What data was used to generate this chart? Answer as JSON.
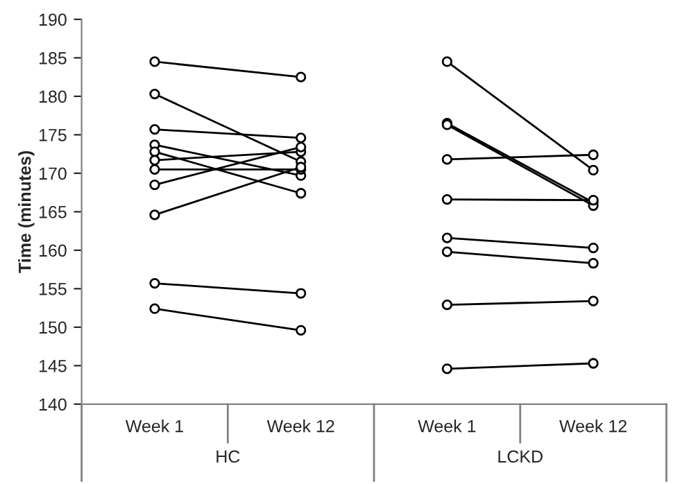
{
  "chart_data": {
    "type": "line",
    "ylabel": "Time (minutes)",
    "categories": [
      "Week 1",
      "Week 12",
      "Week 1",
      "Week 12"
    ],
    "annotations": [
      "HC",
      "LCKD"
    ],
    "ylim": [
      140,
      190
    ],
    "yticks": [
      140,
      145,
      150,
      155,
      160,
      165,
      170,
      175,
      180,
      185,
      190
    ],
    "grid": false,
    "legend": false,
    "marker": "circle",
    "line_style": "solid",
    "series": [
      {
        "color": "#000000",
        "values": [
          184.5,
          182.5,
          null,
          null
        ]
      },
      {
        "color": "#000000",
        "values": [
          180.3,
          171.5,
          null,
          null
        ]
      },
      {
        "color": "#000000",
        "values": [
          175.7,
          174.6,
          null,
          null
        ]
      },
      {
        "color": "#000000",
        "values": [
          173.7,
          169.7,
          null,
          null
        ]
      },
      {
        "color": "#000000",
        "values": [
          172.8,
          167.4,
          null,
          null
        ]
      },
      {
        "color": "#000000",
        "values": [
          171.7,
          172.8,
          null,
          null
        ]
      },
      {
        "color": "#000000",
        "values": [
          170.5,
          170.5,
          null,
          null
        ]
      },
      {
        "color": "#000000",
        "values": [
          168.5,
          173.4,
          null,
          null
        ]
      },
      {
        "color": "#000000",
        "values": [
          164.6,
          170.8,
          null,
          null
        ]
      },
      {
        "color": "#000000",
        "values": [
          155.7,
          154.4,
          null,
          null
        ]
      },
      {
        "color": "#000000",
        "values": [
          152.4,
          149.6,
          null,
          null
        ]
      },
      {
        "color": "#000000",
        "values": [
          null,
          null,
          184.5,
          170.4
        ]
      },
      {
        "color": "#000000",
        "values": [
          null,
          null,
          176.5,
          166.2
        ]
      },
      {
        "color": "#000000",
        "values": [
          null,
          null,
          176.3,
          165.8
        ]
      },
      {
        "color": "#000000",
        "values": [
          null,
          null,
          171.8,
          172.4
        ]
      },
      {
        "color": "#000000",
        "values": [
          null,
          null,
          166.6,
          166.5
        ]
      },
      {
        "color": "#000000",
        "values": [
          null,
          null,
          161.6,
          160.3
        ]
      },
      {
        "color": "#000000",
        "values": [
          null,
          null,
          159.8,
          158.3
        ]
      },
      {
        "color": "#000000",
        "values": [
          null,
          null,
          152.9,
          153.4
        ]
      },
      {
        "color": "#000000",
        "values": [
          null,
          null,
          144.6,
          145.3
        ]
      }
    ]
  }
}
